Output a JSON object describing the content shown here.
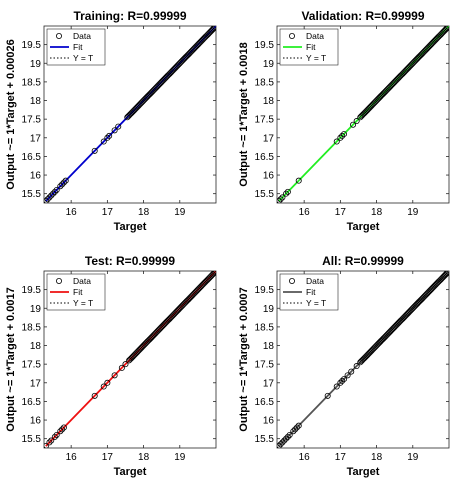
{
  "chart_data": [
    {
      "type": "scatter",
      "title": "Training: R=0.99999",
      "xlabel": "Target",
      "ylabel": "Output ~= 1*Target + 0.00026",
      "xlim": [
        15.25,
        20.0
      ],
      "ylim": [
        15.25,
        20.0
      ],
      "xticks": [
        "16",
        "17",
        "18",
        "19"
      ],
      "yticks": [
        "15.5",
        "16",
        "16.5",
        "17",
        "17.5",
        "18",
        "18.5",
        "19",
        "19.5"
      ],
      "grid": false,
      "legend_position": "top-left",
      "legend": [
        "Data",
        "Fit",
        "Y = T"
      ],
      "fit_color": "#0000cc",
      "fit": {
        "slope": 1,
        "intercept": 0.00026
      },
      "points": [
        15.3,
        15.35,
        15.4,
        15.45,
        15.5,
        15.55,
        15.6,
        15.7,
        15.75,
        15.8,
        15.85,
        16.65,
        16.9,
        17.0,
        17.05,
        17.2,
        17.3
      ],
      "dense_range": [
        17.55,
        20.0
      ]
    },
    {
      "type": "scatter",
      "title": "Validation: R=0.99999",
      "xlabel": "Target",
      "ylabel": "Output ~= 1*Target + 0.0018",
      "xlim": [
        15.25,
        20.0
      ],
      "ylim": [
        15.25,
        20.0
      ],
      "xticks": [
        "16",
        "17",
        "18",
        "19"
      ],
      "yticks": [
        "15.5",
        "16",
        "16.5",
        "17",
        "17.5",
        "18",
        "18.5",
        "19",
        "19.5"
      ],
      "grid": false,
      "legend_position": "top-left",
      "legend": [
        "Data",
        "Fit",
        "Y = T"
      ],
      "fit_color": "#22ee22",
      "fit": {
        "slope": 1,
        "intercept": 0.0018
      },
      "points": [
        15.3,
        15.35,
        15.4,
        15.5,
        15.55,
        15.85,
        16.9,
        17.0,
        17.05,
        17.1,
        17.35,
        17.45
      ],
      "dense_range": [
        17.55,
        20.0
      ]
    },
    {
      "type": "scatter",
      "title": "Test: R=0.99999",
      "xlabel": "Target",
      "ylabel": "Output ~= 1*Target + 0.0017",
      "xlim": [
        15.25,
        20.0
      ],
      "ylim": [
        15.25,
        20.0
      ],
      "xticks": [
        "16",
        "17",
        "18",
        "19"
      ],
      "yticks": [
        "15.5",
        "16",
        "16.5",
        "17",
        "17.5",
        "18",
        "18.5",
        "19",
        "19.5"
      ],
      "grid": false,
      "legend_position": "top-left",
      "legend": [
        "Data",
        "Fit",
        "Y = T"
      ],
      "fit_color": "#ee1111",
      "fit": {
        "slope": 1,
        "intercept": 0.0017
      },
      "points": [
        15.3,
        15.4,
        15.45,
        15.55,
        15.6,
        15.7,
        15.75,
        15.8,
        16.65,
        16.9,
        17.0,
        17.2,
        17.4,
        17.5
      ],
      "dense_range": [
        17.6,
        20.0
      ]
    },
    {
      "type": "scatter",
      "title": "All: R=0.99999",
      "xlabel": "Target",
      "ylabel": "Output ~= 1*Target + 0.0007",
      "xlim": [
        15.25,
        20.0
      ],
      "ylim": [
        15.25,
        20.0
      ],
      "xticks": [
        "16",
        "17",
        "18",
        "19"
      ],
      "yticks": [
        "15.5",
        "16",
        "16.5",
        "17",
        "17.5",
        "18",
        "18.5",
        "19",
        "19.5"
      ],
      "grid": false,
      "legend_position": "top-left",
      "legend": [
        "Data",
        "Fit",
        "Y = T"
      ],
      "fit_color": "#555555",
      "fit": {
        "slope": 1,
        "intercept": 0.0007
      },
      "points": [
        15.3,
        15.35,
        15.4,
        15.45,
        15.5,
        15.55,
        15.6,
        15.7,
        15.75,
        15.8,
        15.85,
        16.65,
        16.9,
        17.0,
        17.05,
        17.1,
        17.2,
        17.3,
        17.45
      ],
      "dense_range": [
        17.55,
        20.0
      ]
    }
  ]
}
